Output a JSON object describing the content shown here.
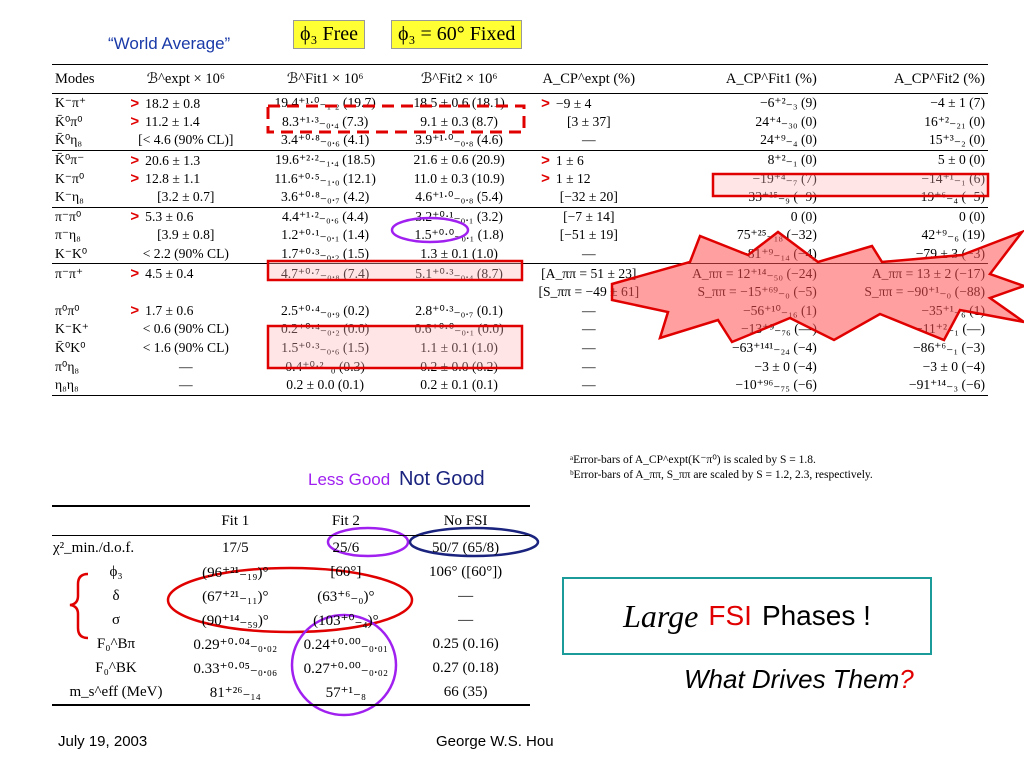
{
  "header": {
    "world_average": "“World Average”",
    "phi_free": "ϕ₃ Free",
    "phi_fixed": "ϕ₃ = 60° Fixed"
  },
  "main_table": {
    "headers": [
      "Modes",
      "ℬ^expt × 10⁶",
      "ℬ^Fit1 × 10⁶",
      "ℬ^Fit2 × 10⁶",
      "A_CP^expt (%)",
      "A_CP^Fit1 (%)",
      "A_CP^Fit2 (%)"
    ],
    "rows": [
      {
        "mark": true,
        "cells": [
          "K⁻π⁺",
          "18.2 ± 0.8",
          "19.4⁺¹·⁰₋₁.₂ (19.7)",
          "18.5 ± 0.6 (18.1)",
          "−9 ± 4",
          "−6⁺²₋₃ (9)",
          "−4 ± 1 (7)"
        ],
        "markCP": true
      },
      {
        "mark": true,
        "cells": [
          "K̄⁰π⁰",
          "11.2 ± 1.4",
          "8.3⁺¹·³₋₀.₄ (7.3)",
          "9.1 ± 0.3 (8.7)",
          "[3 ± 37]",
          "24⁺⁴₋₃₀ (0)",
          "16⁺²₋₂₁ (0)"
        ]
      },
      {
        "mark": false,
        "cells": [
          "K̄⁰η₈",
          "[< 4.6 (90% CL)]",
          "3.4⁺⁰·⁸₋₀.₆ (4.1)",
          "3.9⁺¹·⁰₋₀.₈ (4.6)",
          "—",
          "24⁺⁹₋₄ (0)",
          "15⁺³₋₂ (0)"
        ]
      },
      {
        "mark": true,
        "sep": true,
        "markCP": true,
        "cells": [
          "K̄⁰π⁻",
          "20.6 ± 1.3",
          "19.6⁺²·²₋₁.₄ (18.5)",
          "21.6 ± 0.6 (20.9)",
          "1 ± 6",
          "8⁺²₋₁ (0)",
          "5 ± 0 (0)"
        ]
      },
      {
        "mark": true,
        "markCP": true,
        "cells": [
          "K⁻π⁰",
          "12.8 ± 1.1",
          "11.6⁺⁰·⁵₋₁.₀ (12.1)",
          "11.0 ± 0.3 (10.9)",
          "1 ± 12",
          "−19⁺⁴₋₇ (7)",
          "−14⁺¹₋₁ (6)"
        ]
      },
      {
        "mark": false,
        "cells": [
          "K⁻η₈",
          "[3.2 ± 0.7]",
          "3.6⁺⁰·⁸₋₀.₇ (4.2)",
          "4.6⁺¹·⁰₋₀.₈ (5.4)",
          "[−32 ± 20]",
          "33⁺¹⁵₋₉ (−9)",
          "19⁺⁶₋₄ (−5)"
        ]
      },
      {
        "mark": true,
        "sep": true,
        "cells": [
          "π⁻π⁰",
          "5.3 ± 0.6",
          "4.4⁺¹·²₋₀.₆ (4.4)",
          "3.2⁺⁰·¹₋₀.₁ (3.2)",
          "[−7 ± 14]",
          "0 (0)",
          "0 (0)"
        ]
      },
      {
        "mark": false,
        "cells": [
          "π⁻η₈",
          "[3.9 ± 0.8]",
          "1.2⁺⁰·¹₋₀.₁ (1.4)",
          "1.5⁺⁰·⁰₋₀.₁ (1.8)",
          "[−51 ± 19]",
          "75⁺²⁵₋₁₈ (−32)",
          "42⁺⁹₋₆ (19)"
        ]
      },
      {
        "mark": false,
        "cells": [
          "K⁻K⁰",
          "< 2.2 (90% CL)",
          "1.7⁺⁰·³₋₀.₂ (1.5)",
          "1.3 ± 0.1 (1.0)",
          "—",
          "−81⁺⁹₋₁₄ (−4)",
          "−79 ± 3 (−3)"
        ]
      },
      {
        "mark": true,
        "sep": true,
        "cells": [
          "π⁻π⁺",
          "4.5 ± 0.4",
          "4.7⁺⁰·⁷₋₀.₈ (7.4)",
          "5.1⁺⁰·³₋₀.₄ (8.7)",
          "[A_ππ = 51 ± 23]",
          "A_ππ = 12⁺¹⁴₋₅₀ (−24)",
          "A_ππ = 13 ± 2 (−17)"
        ]
      },
      {
        "mark": false,
        "cells": [
          "",
          "",
          "",
          "",
          "[S_ππ = −49 ± 61]",
          "S_ππ = −15⁺⁶⁹₋₀ (−5)",
          "S_ππ = −90⁺¹₋₀ (−88)"
        ]
      },
      {
        "mark": true,
        "cells": [
          "π⁰π⁰",
          "1.7 ± 0.6",
          "2.5⁺⁰·⁴₋₀.₉ (0.2)",
          "2.8⁺⁰·³₋₀.₇ (0.1)",
          "—",
          "−56⁺¹⁰₋₁₆ (1)",
          "−35⁺¹₋₆ (1)"
        ]
      },
      {
        "mark": false,
        "cells": [
          "K⁻K⁺",
          "< 0.6 (90% CL)",
          "0.2⁺⁰·⁴₋₀.₂ (0.0)",
          "0.6⁺⁰·⁰₋₀.₁ (0.0)",
          "—",
          "−13⁺⁹₋₇₆ (—)",
          "−11⁺²₋₁ (—)"
        ]
      },
      {
        "mark": false,
        "cells": [
          "K̄⁰K⁰",
          "< 1.6 (90% CL)",
          "1.5⁺⁰·³₋₀.₆ (1.5)",
          "1.1 ± 0.1 (1.0)",
          "—",
          "−63⁺¹⁴¹₋₂₄ (−4)",
          "−86⁺⁶₋₁ (−3)"
        ]
      },
      {
        "mark": false,
        "cells": [
          "π⁰η₈",
          "—",
          "0.4⁺⁰·²₋₀ (0.3)",
          "0.2 ± 0.0 (0.2)",
          "—",
          "−3 ± 0 (−4)",
          "−3 ± 0 (−4)"
        ]
      },
      {
        "mark": false,
        "last": true,
        "cells": [
          "η₈η₈",
          "—",
          "0.2 ± 0.0 (0.1)",
          "0.2 ± 0.1 (0.1)",
          "—",
          "−10⁺⁹⁶₋₇₅ (−6)",
          "−91⁺¹⁴₋₃ (−6)"
        ]
      }
    ],
    "mark_symbol": ">"
  },
  "footnotes": {
    "a": "ᵃError-bars of A_CP^expt(K⁻π⁰) is scaled by S = 1.8.",
    "b": "ᵇError-bars of A_ππ, S_ππ are scaled by S = 1.2, 2.3, respectively."
  },
  "labels": {
    "less_good": "Less Good",
    "not_good": "Not Good"
  },
  "fit_table": {
    "headers": [
      "",
      "Fit 1",
      "Fit 2",
      "No FSI"
    ],
    "rows": [
      [
        "χ²_min./d.o.f.",
        "17/5",
        "25/6",
        "50/7 (65/8)"
      ],
      [
        "ϕ₃",
        "(96⁺²¹₋₁₉)°",
        "[60°]",
        "106° ([60°])"
      ],
      [
        "δ",
        "(67⁺²¹₋₁₁)°",
        "(63⁺⁶₋₀)°",
        "—"
      ],
      [
        "σ",
        "(90⁺¹⁴₋₅₉)°",
        "(103⁺⁰₋₄)°",
        "—"
      ],
      [
        "F₀^Bπ",
        "0.29⁺⁰·⁰⁴₋₀.₀₂",
        "0.24⁺⁰·⁰⁰₋₀.₀₁",
        "0.25 (0.16)"
      ],
      [
        "F₀^BK",
        "0.33⁺⁰·⁰⁵₋₀.₀₆",
        "0.27⁺⁰·⁰⁰₋₀.₀₂",
        "0.27 (0.18)"
      ],
      [
        "m_s^eff (MeV)",
        "81⁺²⁶₋₁₄",
        "57⁺¹₋₈",
        "66 (35)"
      ]
    ]
  },
  "callout": {
    "large": "Large",
    "fsi": "FSI",
    "phases": "Phases !"
  },
  "drives": {
    "text": "What Drives Them",
    "q": "?"
  },
  "footer": {
    "date": "July 19, 2003",
    "author": "George W.S. Hou"
  },
  "colors": {
    "red": "#e00000",
    "blue": "#1a3aa8",
    "purple": "#a020f0",
    "navy": "#1a237e",
    "teal": "#1c9b9b",
    "yellow": "#ffff33"
  }
}
